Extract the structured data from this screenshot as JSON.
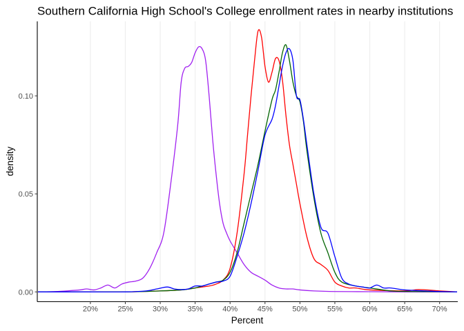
{
  "chart_data": {
    "type": "line",
    "title": "Southern California High School's College enrollment rates in nearby institutions",
    "xlabel": "Percent",
    "ylabel": "density",
    "xlim": [
      12.4,
      72.6
    ],
    "ylim": [
      -0.005,
      0.138
    ],
    "grid": "vertical-major",
    "legend": "none",
    "x_ticks": [
      {
        "value": 20,
        "label": "20%"
      },
      {
        "value": 25,
        "label": "25%"
      },
      {
        "value": 30,
        "label": "30%"
      },
      {
        "value": 35,
        "label": "35%"
      },
      {
        "value": 40,
        "label": "40%"
      },
      {
        "value": 45,
        "label": "45%"
      },
      {
        "value": 50,
        "label": "50%"
      },
      {
        "value": 55,
        "label": "55%"
      },
      {
        "value": 60,
        "label": "60%"
      },
      {
        "value": 65,
        "label": "65%"
      },
      {
        "value": 70,
        "label": "70%"
      }
    ],
    "y_ticks": [
      {
        "value": 0.0,
        "label": "0.00"
      },
      {
        "value": 0.05,
        "label": "0.05"
      },
      {
        "value": 0.1,
        "label": "0.10"
      }
    ],
    "series": [
      {
        "color": "#a020f0",
        "x": [
          12.5,
          15,
          17,
          18.5,
          19.5,
          20.5,
          21.5,
          22.5,
          23.5,
          24.5,
          25.5,
          26.5,
          27.5,
          28.5,
          29.5,
          30.5,
          31.5,
          32.5,
          33,
          33.5,
          34,
          34.5,
          35,
          35.5,
          36,
          36.5,
          37,
          37.5,
          38,
          38.5,
          39,
          39.5,
          40,
          41,
          42,
          43,
          44,
          45,
          46,
          47,
          48,
          49,
          50,
          52,
          55,
          60,
          65,
          70,
          72.5
        ],
        "y": [
          0.0,
          0.0002,
          0.0006,
          0.001,
          0.0015,
          0.001,
          0.002,
          0.0035,
          0.002,
          0.004,
          0.005,
          0.0055,
          0.007,
          0.012,
          0.02,
          0.03,
          0.055,
          0.085,
          0.107,
          0.114,
          0.115,
          0.117,
          0.122,
          0.125,
          0.124,
          0.118,
          0.1,
          0.078,
          0.06,
          0.045,
          0.035,
          0.03,
          0.026,
          0.02,
          0.014,
          0.01,
          0.008,
          0.006,
          0.0035,
          0.002,
          0.0015,
          0.0015,
          0.001,
          0.0005,
          0.0002,
          0.0001,
          0.0,
          0.0,
          0.0
        ]
      },
      {
        "color": "#ff0000",
        "x": [
          12.5,
          20,
          25,
          30,
          33,
          35,
          37,
          38,
          39,
          40,
          41,
          42,
          42.5,
          43,
          43.5,
          44,
          44.5,
          45,
          45.5,
          46,
          46.5,
          47,
          47.5,
          48,
          48.5,
          49,
          49.5,
          50,
          51,
          52,
          53,
          54,
          55,
          56,
          57,
          58,
          60,
          65,
          67,
          70,
          72.5
        ],
        "y": [
          0.0,
          0.0,
          0.0,
          0.0005,
          0.001,
          0.002,
          0.003,
          0.004,
          0.006,
          0.012,
          0.03,
          0.06,
          0.08,
          0.1,
          0.118,
          0.133,
          0.13,
          0.115,
          0.107,
          0.112,
          0.119,
          0.118,
          0.108,
          0.09,
          0.075,
          0.065,
          0.055,
          0.045,
          0.028,
          0.017,
          0.014,
          0.011,
          0.005,
          0.003,
          0.002,
          0.002,
          0.001,
          0.0005,
          0.0012,
          0.0005,
          0.0
        ]
      },
      {
        "color": "#006400",
        "x": [
          12.5,
          25,
          30,
          33,
          35,
          37,
          38,
          39,
          40,
          41,
          42,
          43,
          44,
          45,
          46,
          46.5,
          47,
          47.5,
          48,
          48.5,
          49,
          49.5,
          50,
          50.5,
          51,
          52,
          53,
          54,
          55,
          56,
          58,
          60,
          63,
          66,
          70,
          72.5
        ],
        "y": [
          0.0,
          0.0,
          0.0005,
          0.001,
          0.002,
          0.004,
          0.005,
          0.006,
          0.01,
          0.02,
          0.035,
          0.05,
          0.065,
          0.082,
          0.098,
          0.103,
          0.112,
          0.122,
          0.126,
          0.118,
          0.107,
          0.1,
          0.097,
          0.087,
          0.072,
          0.048,
          0.03,
          0.02,
          0.01,
          0.005,
          0.003,
          0.002,
          0.0005,
          0.0002,
          0.0001,
          0.0
        ]
      },
      {
        "color": "#0000ff",
        "x": [
          12.5,
          20,
          25,
          28,
          29.5,
          31,
          32,
          33,
          34,
          35,
          36,
          37,
          38,
          39,
          40,
          41,
          42,
          43,
          44,
          45,
          46,
          46.5,
          47,
          47.5,
          48,
          48.5,
          49,
          49.5,
          50,
          50.5,
          51,
          52,
          53,
          54,
          55,
          56,
          57,
          58,
          59,
          60,
          61,
          62,
          63,
          65,
          68,
          70,
          72.5
        ],
        "y": [
          0.0,
          0.0,
          0.0,
          0.0005,
          0.0015,
          0.0025,
          0.0015,
          0.0012,
          0.0015,
          0.003,
          0.003,
          0.004,
          0.005,
          0.0055,
          0.008,
          0.018,
          0.03,
          0.045,
          0.062,
          0.08,
          0.088,
          0.095,
          0.105,
          0.115,
          0.122,
          0.124,
          0.118,
          0.1,
          0.098,
          0.088,
          0.075,
          0.05,
          0.033,
          0.03,
          0.018,
          0.007,
          0.004,
          0.003,
          0.0025,
          0.002,
          0.0035,
          0.002,
          0.002,
          0.001,
          0.0005,
          0.0002,
          0.0
        ]
      }
    ]
  }
}
